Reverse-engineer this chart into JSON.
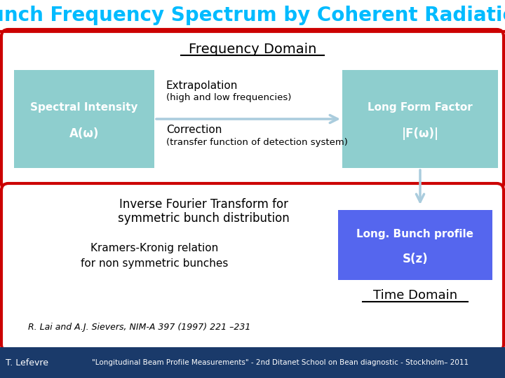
{
  "title": "Bunch Frequency Spectrum by Coherent Radiation",
  "title_color": "#00BBFF",
  "title_fontsize": 20,
  "bg_color": "#FFFFFF",
  "outer_border_color": "#CC0000",
  "freq_domain_label": "Frequency Domain",
  "time_domain_label": "Time Domain",
  "spectral_box_label1": "Spectral Intensity",
  "spectral_box_label2": "A(ω)",
  "spectral_box_color_top": "#8ECECE",
  "spectral_box_color_bot": "#5FA8A8",
  "long_form_label1": "Long Form Factor",
  "long_form_label2": "|F(ω)|",
  "long_form_box_color_top": "#8ECECE",
  "long_form_box_color_bot": "#5FA8A8",
  "bunch_profile_label1": "Long. Bunch profile",
  "bunch_profile_label2": "S(z)",
  "bunch_profile_box_color": "#5566EE",
  "extrapolation_title": "Extrapolation",
  "extrapolation_sub": "(high and low frequencies)",
  "correction_title": "Correction",
  "correction_sub": "(transfer function of detection system)",
  "ift_text1": "Inverse Fourier Transform for",
  "ift_text2": "symmetric bunch distribution",
  "kramers_text1": "Kramers-Kronig relation",
  "kramers_text2": "for non symmetric bunches",
  "reference": "R. Lai and A.J. Sievers, NIM-A 397 (1997) 221 –231",
  "footer_left": "T. Lefevre",
  "footer_right": "\"Longitudinal Beam Profile Measurements\" - 2nd Ditanet School on Bean diagnostic - Stockholm– 2011",
  "arrow_color": "#AACCDD",
  "footer_bg": "#1A3A6A",
  "red_line_color": "#CC0000",
  "title_underline_color": "#CC0000"
}
